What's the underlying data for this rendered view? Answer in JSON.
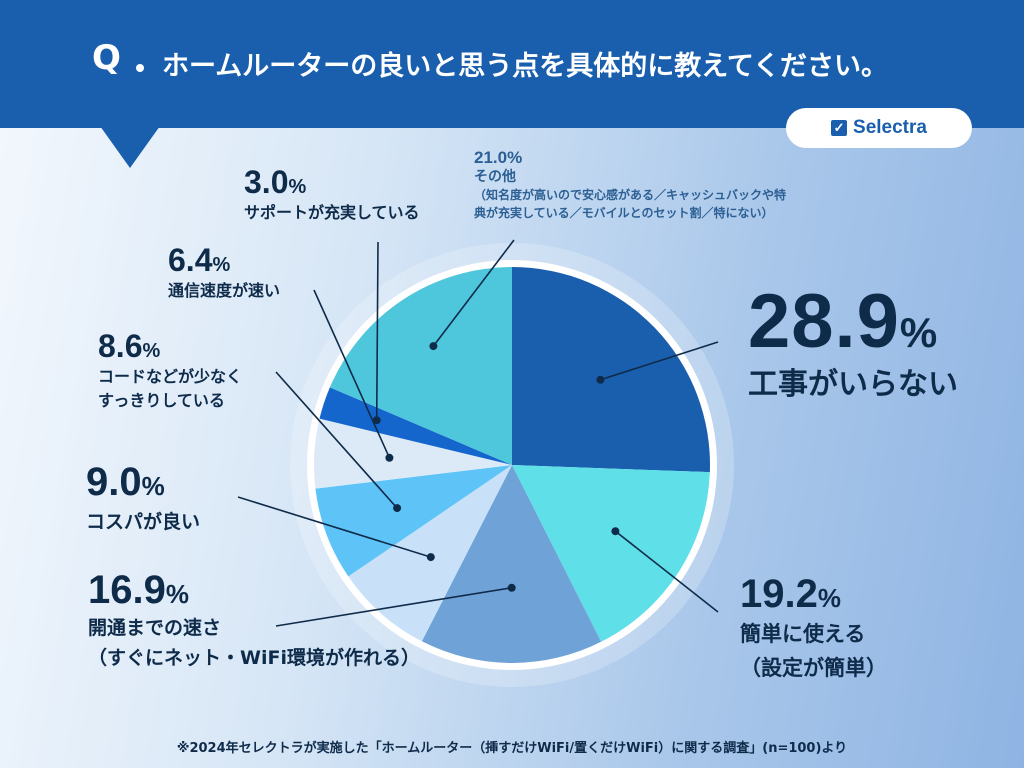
{
  "header": {
    "q_mark": "Q",
    "question": "ホームルーターの良いと思う点を具体的に教えてください。"
  },
  "logo": {
    "check": "✓",
    "text": "Selectra",
    "icon": "check-box-icon"
  },
  "colors": {
    "header_bg": "#1a5fae",
    "text_dark": "#0f2b4a"
  },
  "chart_data": {
    "type": "pie",
    "title": "ホームルーターの良いと思う点を具体的に教えてください。",
    "unit": "%",
    "slices": [
      {
        "label": "工事がいらない",
        "value": 28.9,
        "value_text": "28.9",
        "color": "#1a5fae"
      },
      {
        "label": "簡単に使える",
        "note": "（設定が簡単）",
        "value": 19.2,
        "value_text": "19.2",
        "color": "#5fe0e8"
      },
      {
        "label": "開通までの速さ",
        "note": "（すぐにネット・WiFi環境が作れる）",
        "value": 16.9,
        "value_text": "16.9",
        "color": "#6fa3d8"
      },
      {
        "label": "コスパが良い",
        "value": 9.0,
        "value_text": "9.0",
        "color": "#c9e1f8"
      },
      {
        "label": "コードなどが少なく",
        "note": "すっきりしている",
        "value": 8.6,
        "value_text": "8.6",
        "color": "#5ec4f7"
      },
      {
        "label": "通信速度が速い",
        "value": 6.4,
        "value_text": "6.4",
        "color": "#dceaf8"
      },
      {
        "label": "サポートが充実している",
        "value": 3.0,
        "value_text": "3.0",
        "color": "#1466cc"
      },
      {
        "label": "その他",
        "note": "（知名度が高いので安心感がある／キャッシュバックや特典が充実している／モバイルとのセット割／特にない）",
        "note_line1": "（知名度が高いので安心感がある／キャッシュバックや特",
        "note_line2": "典が充実している／モバイルとのセット割／特にない）",
        "value": 21.0,
        "value_text": "21.0",
        "color": "#4ec7dc"
      }
    ]
  },
  "footnote": "※2024年セレクトラが実施した「ホームルーター（挿すだけWiFi/置くだけWiFi）に関する調査」(n=100)より"
}
